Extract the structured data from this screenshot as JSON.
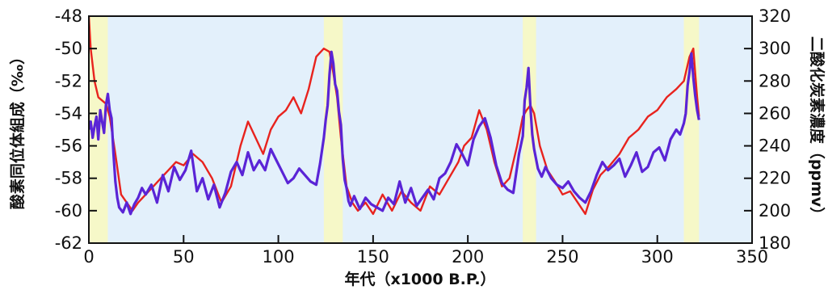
{
  "chart_data": {
    "type": "line",
    "title": "",
    "xlabel": "年代（x1000 B.P.）",
    "ylabel_left": "酸素同位体組成（‰）",
    "ylabel_right": "二酸化炭素濃度（ppmv）",
    "xlim": [
      0,
      350
    ],
    "ylim_left": [
      -62,
      -48
    ],
    "ylim_right": [
      180,
      320
    ],
    "x_ticks": [
      "0",
      "50",
      "100",
      "150",
      "200",
      "250",
      "300",
      "350"
    ],
    "y_left_ticks": [
      "-48",
      "-50",
      "-52",
      "-54",
      "-56",
      "-58",
      "-60",
      "-62"
    ],
    "y_right_ticks": [
      "320",
      "300",
      "280",
      "260",
      "240",
      "220",
      "200",
      "180"
    ],
    "grid": false,
    "background_color": "#e3f0fb",
    "colors": {
      "co2": "#e8231e",
      "oxygen": "#5a24d6",
      "interglacial": "#f6f8c8"
    },
    "interglacial_bands": [
      [
        0,
        10
      ],
      [
        124,
        134
      ],
      [
        229,
        236
      ],
      [
        314,
        322
      ]
    ],
    "series": [
      {
        "axis": "right",
        "x": [
          0,
          1,
          3,
          5,
          7,
          9,
          11,
          14,
          17,
          20,
          23,
          26,
          30,
          34,
          38,
          42,
          46,
          50,
          55,
          60,
          65,
          70,
          75,
          80,
          84,
          88,
          92,
          96,
          100,
          104,
          108,
          112,
          116,
          120,
          124,
          127,
          129,
          131,
          133,
          136,
          139,
          142,
          146,
          150,
          155,
          160,
          165,
          170,
          175,
          180,
          185,
          190,
          195,
          198,
          202,
          206,
          210,
          214,
          218,
          222,
          226,
          229,
          231,
          233,
          235,
          238,
          242,
          246,
          250,
          254,
          258,
          262,
          266,
          270,
          275,
          280,
          285,
          290,
          295,
          300,
          305,
          310,
          314,
          317,
          319,
          320,
          321,
          322
        ],
        "values": [
          320,
          300,
          280,
          270,
          268,
          266,
          258,
          235,
          210,
          205,
          200,
          205,
          210,
          215,
          220,
          225,
          230,
          228,
          235,
          230,
          220,
          205,
          215,
          240,
          255,
          245,
          235,
          250,
          258,
          262,
          270,
          260,
          275,
          295,
          300,
          298,
          285,
          270,
          245,
          215,
          205,
          200,
          205,
          198,
          210,
          200,
          212,
          205,
          200,
          215,
          210,
          220,
          230,
          240,
          245,
          262,
          250,
          230,
          215,
          220,
          240,
          258,
          262,
          265,
          260,
          240,
          225,
          218,
          210,
          212,
          205,
          198,
          213,
          222,
          228,
          235,
          245,
          250,
          258,
          262,
          270,
          275,
          280,
          295,
          300,
          285,
          270,
          258
        ]
      },
      {
        "axis": "left",
        "x": [
          0,
          1,
          2,
          3,
          4,
          5,
          6,
          7,
          8,
          9,
          10,
          11,
          12,
          13,
          14,
          15,
          16,
          18,
          20,
          22,
          24,
          26,
          28,
          30,
          33,
          36,
          39,
          42,
          45,
          48,
          51,
          54,
          57,
          60,
          63,
          66,
          69,
          72,
          75,
          78,
          81,
          84,
          87,
          90,
          93,
          96,
          99,
          102,
          105,
          108,
          111,
          114,
          117,
          120,
          122,
          124,
          125,
          126,
          127,
          128,
          129,
          130,
          131,
          132,
          133,
          134,
          135,
          136,
          137,
          138,
          140,
          143,
          146,
          149,
          152,
          155,
          158,
          161,
          164,
          167,
          170,
          173,
          176,
          179,
          182,
          185,
          188,
          191,
          194,
          197,
          200,
          203,
          206,
          209,
          212,
          215,
          218,
          221,
          224,
          227,
          229,
          230,
          231,
          232,
          233,
          234,
          235,
          237,
          239,
          241,
          244,
          247,
          250,
          253,
          256,
          259,
          262,
          265,
          268,
          271,
          274,
          277,
          280,
          283,
          286,
          289,
          292,
          295,
          298,
          301,
          304,
          307,
          310,
          312,
          314,
          315,
          316,
          317,
          318,
          319,
          320,
          321,
          322
        ],
        "values": [
          -55,
          -54.5,
          -55.5,
          -54.8,
          -54.2,
          -55.6,
          -53.8,
          -54.5,
          -55.2,
          -53.5,
          -52.8,
          -53.8,
          -54.3,
          -56.5,
          -58.2,
          -59.2,
          -59.8,
          -60.1,
          -59.5,
          -60.2,
          -59.6,
          -59.2,
          -58.6,
          -59.0,
          -58.4,
          -59.5,
          -57.8,
          -58.8,
          -57.3,
          -58.1,
          -57.5,
          -56.3,
          -58.8,
          -58.0,
          -59.3,
          -58.4,
          -59.8,
          -58.9,
          -57.6,
          -57.0,
          -57.8,
          -56.4,
          -57.5,
          -56.9,
          -57.5,
          -56.2,
          -56.9,
          -57.6,
          -58.3,
          -58.0,
          -57.4,
          -57.8,
          -58.2,
          -58.4,
          -57.1,
          -55.5,
          -54.4,
          -53.5,
          -51.6,
          -50.2,
          -50.9,
          -52.2,
          -52.6,
          -53.9,
          -54.7,
          -56.8,
          -58.1,
          -58.6,
          -59.4,
          -59.7,
          -59.1,
          -59.9,
          -59.2,
          -59.6,
          -59.8,
          -60.0,
          -59.2,
          -59.6,
          -58.2,
          -59.5,
          -58.6,
          -59.7,
          -59.2,
          -58.7,
          -59.3,
          -58.0,
          -57.7,
          -57.0,
          -55.9,
          -56.5,
          -57.2,
          -55.6,
          -54.8,
          -54.3,
          -55.5,
          -57.2,
          -58.3,
          -58.7,
          -58.9,
          -56.5,
          -55.4,
          -53.2,
          -52.4,
          -51.2,
          -53.6,
          -55.3,
          -56.2,
          -57.4,
          -57.9,
          -57.3,
          -58.0,
          -58.4,
          -58.6,
          -58.2,
          -58.8,
          -59.2,
          -59.5,
          -58.8,
          -57.8,
          -57.0,
          -57.5,
          -57.2,
          -56.8,
          -57.9,
          -57.2,
          -56.4,
          -57.6,
          -57.3,
          -56.4,
          -56.1,
          -56.9,
          -55.6,
          -55.0,
          -55.3,
          -54.6,
          -54.0,
          -52.3,
          -51.4,
          -50.3,
          -51.8,
          -52.9,
          -53.8,
          -54.4
        ]
      }
    ]
  }
}
